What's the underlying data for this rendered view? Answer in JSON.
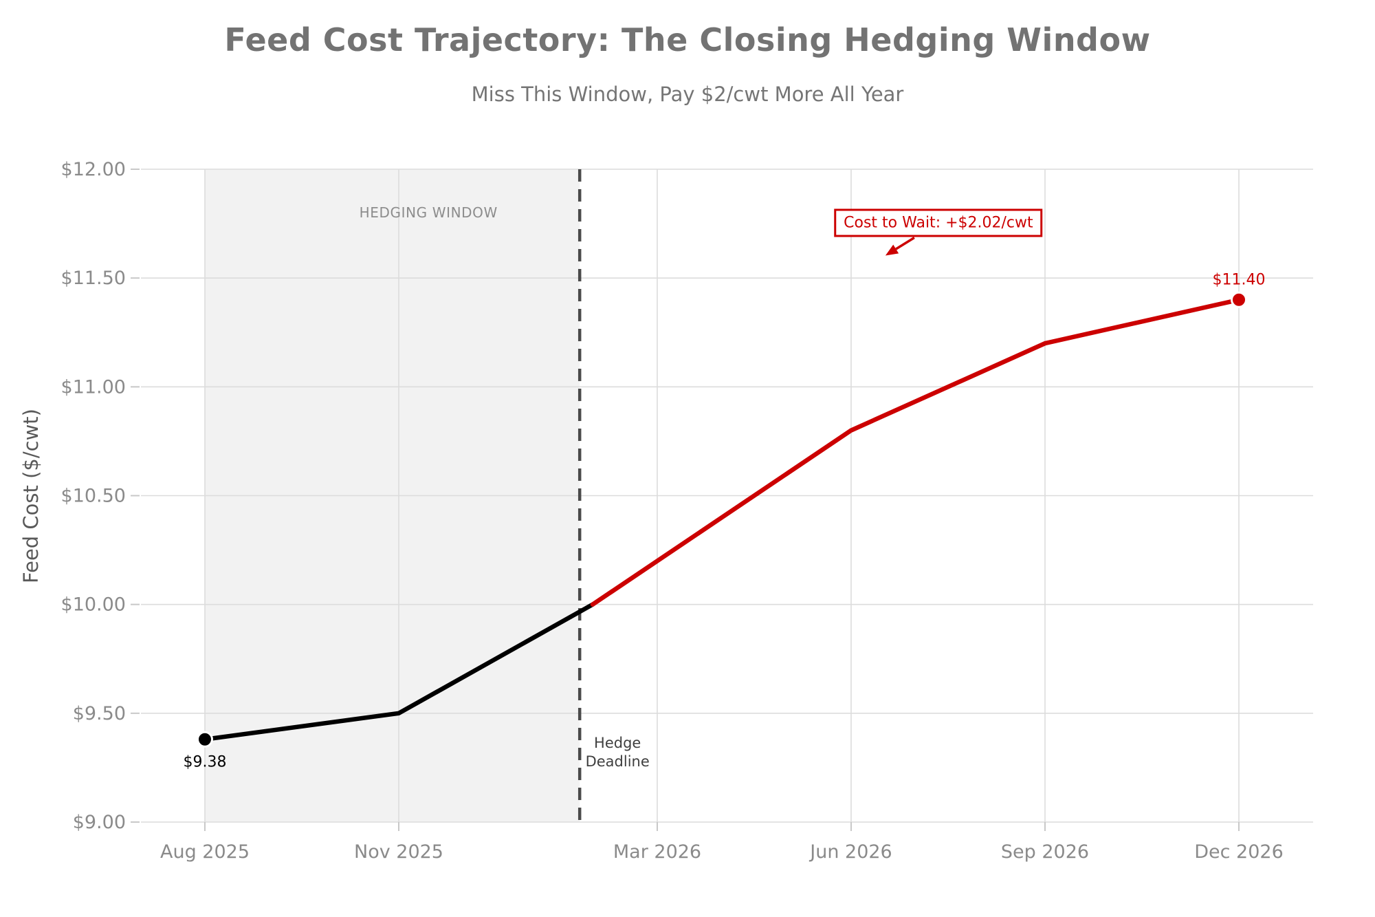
{
  "chart_data": {
    "type": "line",
    "title": "Feed Cost Trajectory: The Closing Hedging Window",
    "subtitle": "Miss This Window, Pay $2/cwt More All Year",
    "ylabel": "Feed Cost ($/cwt)",
    "xlabel": "",
    "ylim": [
      9.0,
      12.0
    ],
    "x_axis_unit": "months since Aug 2025",
    "grid": true,
    "legend": "none",
    "x_ticks": [
      {
        "m": 0,
        "label": "Aug 2025"
      },
      {
        "m": 3,
        "label": "Nov 2025"
      },
      {
        "m": 7,
        "label": "Mar 2026"
      },
      {
        "m": 10,
        "label": "Jun 2026"
      },
      {
        "m": 13,
        "label": "Sep 2026"
      },
      {
        "m": 16,
        "label": "Dec 2026"
      }
    ],
    "y_ticks": [
      {
        "v": 9.0,
        "label": "$9.00"
      },
      {
        "v": 9.5,
        "label": "$9.50"
      },
      {
        "v": 10.0,
        "label": "$10.00"
      },
      {
        "v": 10.5,
        "label": "$10.50"
      },
      {
        "v": 11.0,
        "label": "$11.00"
      },
      {
        "v": 11.5,
        "label": "$11.50"
      },
      {
        "v": 12.0,
        "label": "$12.00"
      }
    ],
    "series": [
      {
        "name": "actual",
        "color": "#000000",
        "points": [
          [
            0,
            9.38
          ],
          [
            3,
            9.5
          ],
          [
            6,
            10.0
          ]
        ]
      },
      {
        "name": "projected",
        "color": "#cc0000",
        "points": [
          [
            6,
            10.0
          ],
          [
            10,
            10.8
          ],
          [
            13,
            11.2
          ],
          [
            16,
            11.4
          ]
        ]
      }
    ],
    "markers": {
      "start": {
        "m": 0,
        "v": 9.38,
        "label": "$9.38",
        "color": "#000000"
      },
      "end": {
        "m": 16,
        "v": 11.4,
        "label": "$11.40",
        "color": "#cc0000"
      }
    },
    "hedging_window": {
      "from_m": 0,
      "to_m": 5.8,
      "label": "HEDGING WINDOW",
      "fill": "#f2f2f2",
      "label_pos": {
        "m": 3.46,
        "v": 11.8
      }
    },
    "hedge_deadline": {
      "m": 5.8,
      "label": [
        "Hedge",
        "Deadline"
      ],
      "label_pos": {
        "v": 9.32
      },
      "line_color": "#4a4a4a"
    },
    "annotation": {
      "text": "Cost to Wait: +$2.02/cwt",
      "color": "#cc0000",
      "pos": {
        "m": 11.35,
        "v": 11.755
      }
    },
    "colors": {
      "grid": "#dcdcdc",
      "tick": "#c8c8c8",
      "tick_label": "#8a8a8a",
      "title": "#737373",
      "subtitle": "#757575",
      "window_label": "#8c8c8c",
      "deadline_label": "#3f3f3f",
      "background": "#ffffff"
    }
  }
}
